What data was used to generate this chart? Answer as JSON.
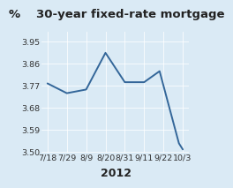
{
  "title": "30-year fixed-rate mortgage",
  "ylabel_pct": "%",
  "xlabel": "2012",
  "background_color": "#daeaf5",
  "plot_bg_color": "#daeaf5",
  "line_color": "#336699",
  "x_labels": [
    "7/18",
    "7/29",
    "8/9",
    "8/20",
    "8/31",
    "9/11",
    "9/22",
    "10/3"
  ],
  "x_values": [
    0,
    1,
    2,
    3,
    4,
    5,
    6,
    7
  ],
  "y_values": [
    3.78,
    3.74,
    3.755,
    3.905,
    3.785,
    3.785,
    3.83,
    3.535,
    3.51
  ],
  "x_data": [
    0,
    1,
    2,
    3,
    4,
    5,
    5.8,
    6.8,
    7
  ],
  "ylim": [
    3.495,
    3.99
  ],
  "yticks": [
    3.5,
    3.59,
    3.68,
    3.77,
    3.86,
    3.95
  ],
  "ytick_labels": [
    "3.50",
    "3.59",
    "3.68",
    "3.77",
    "3.86",
    "3.95"
  ],
  "title_fontsize": 9.5,
  "label_fontsize": 9.5,
  "tick_fontsize": 6.8,
  "xlabel_fontsize": 9,
  "line_width": 1.4
}
